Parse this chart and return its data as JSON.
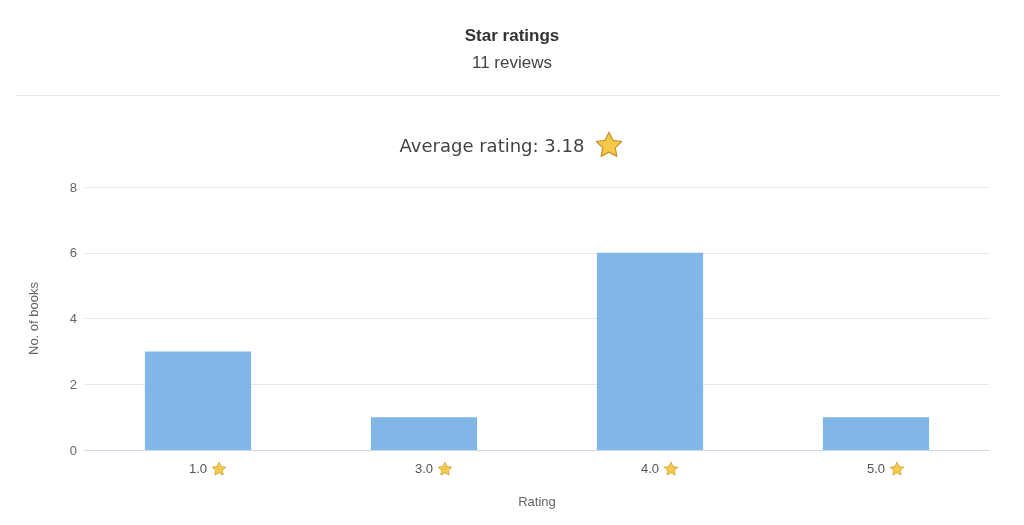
{
  "chart_data": {
    "type": "bar",
    "title": "Star ratings",
    "subtitle": "11 reviews",
    "annotations": [
      "Average rating: 3.18"
    ],
    "xlabel": "Rating",
    "ylabel": "No. of books",
    "categories": [
      "1.0",
      "3.0",
      "4.0",
      "5.0"
    ],
    "values": [
      3,
      1,
      6,
      1
    ],
    "color": "#82b6e6",
    "ylim": [
      0,
      8
    ],
    "yticks": [
      0,
      2,
      4,
      6,
      8
    ],
    "grid": "y"
  }
}
